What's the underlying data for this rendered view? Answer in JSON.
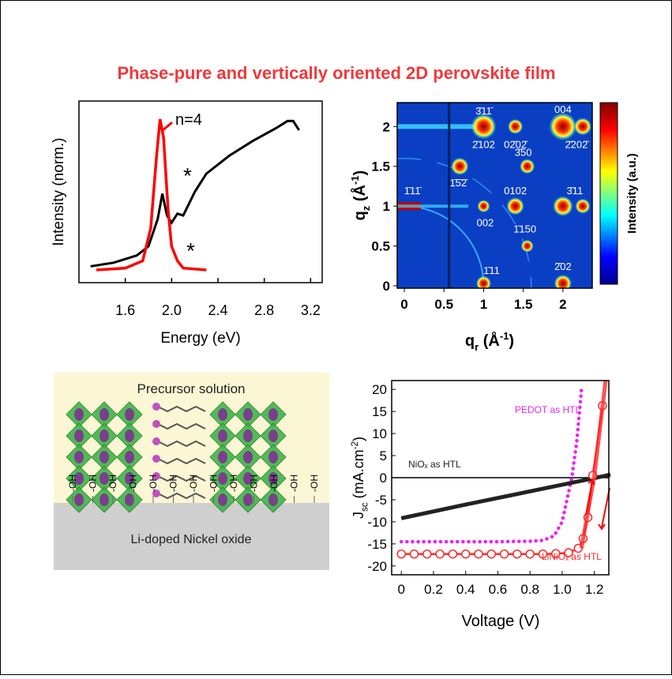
{
  "title": "Phase-pure and vertically oriented 2D perovskite film",
  "chart_data": [
    {
      "type": "line",
      "xlabel": "Energy (eV)",
      "ylabel": "Intensity (norm.)",
      "xlim": [
        1.2,
        3.3
      ],
      "ylim": [
        0,
        1
      ],
      "xticks": [
        1.6,
        {
          "value": 2,
          "label": "2.0"
        },
        2.4,
        2.8,
        3.2
      ],
      "annotations": [
        "n=4",
        "*",
        "*"
      ],
      "series": [
        {
          "color": "#000000",
          "x": [
            1.3,
            1.5,
            1.7,
            1.8,
            1.88,
            1.92,
            1.96,
            2.0,
            2.05,
            2.1,
            2.2,
            2.3,
            2.5,
            2.7,
            2.9,
            3.0,
            3.05,
            3.1
          ],
          "values": [
            0.09,
            0.11,
            0.15,
            0.2,
            0.35,
            0.49,
            0.37,
            0.33,
            0.38,
            0.37,
            0.5,
            0.6,
            0.7,
            0.78,
            0.85,
            0.89,
            0.89,
            0.84
          ]
        },
        {
          "color": "#ff0000",
          "x": [
            1.35,
            1.6,
            1.75,
            1.82,
            1.87,
            1.9,
            1.93,
            1.97,
            2.0,
            2.05,
            2.1,
            2.3
          ],
          "values": [
            0.07,
            0.08,
            0.12,
            0.3,
            0.7,
            0.9,
            0.8,
            0.4,
            0.2,
            0.12,
            0.08,
            0.07
          ]
        }
      ]
    },
    {
      "type": "heatmap",
      "xlabel": [
        {
          "t": "q"
        },
        {
          "t": "r",
          "s": "sub"
        },
        {
          "t": " (Å"
        },
        {
          "t": "-1",
          "s": "sup"
        },
        {
          "t": ")"
        }
      ],
      "ylabel": [
        {
          "t": "q"
        },
        {
          "t": "z",
          "s": "sub"
        },
        {
          "t": " (Å"
        },
        {
          "t": "-1",
          "s": "sup"
        },
        {
          "t": ")"
        }
      ],
      "colorbar_label": "Intensity (a.u.)",
      "xlim": [
        -0.09,
        2.37
      ],
      "ylim": [
        -0.03,
        2.3
      ],
      "xticks": [
        0,
        0.5,
        1,
        1.5,
        2
      ],
      "yticks": [
        0,
        0.5,
        1,
        1.5,
        2
      ],
      "peak_labels": [
        "3̄11̄",
        "2̄102",
        "02̄02̄",
        "004",
        "2̄202̄",
        "1̄5̄2̄",
        "3̄50",
        "1̄11̄",
        "0102",
        "3̄11",
        "002",
        "1̄150",
        "1̄11",
        "2̄02"
      ]
    },
    {
      "type": "line",
      "xlabel": "Voltage (V)",
      "ylabel": [
        {
          "t": "J"
        },
        {
          "t": "sc",
          "s": "sub"
        },
        {
          "t": " (mA.cm"
        },
        {
          "t": "-2",
          "s": "sup"
        },
        {
          "t": ")"
        }
      ],
      "xlim": [
        -0.06,
        1.29
      ],
      "ylim": [
        -22,
        22
      ],
      "xticks": [
        0,
        0.2,
        0.4,
        0.6,
        0.8,
        {
          "value": 1,
          "label": "1.0"
        },
        1.2
      ],
      "yticks": [
        -20,
        -15,
        -10,
        -5,
        0,
        5,
        10,
        15,
        20
      ],
      "series": [
        {
          "name": "PEDOT as HTL",
          "color": "#ee22ee",
          "dash": "dotted",
          "x": [
            0,
            0.2,
            0.4,
            0.6,
            0.8,
            0.88,
            0.95,
            1.0,
            1.03,
            1.06,
            1.09,
            1.12
          ],
          "values": [
            -14.5,
            -14.5,
            -14.5,
            -14.5,
            -14.4,
            -14.2,
            -13.2,
            -10,
            -5,
            0,
            8,
            20
          ]
        },
        {
          "name": "NiOₓ as HTL",
          "color": "#222222",
          "x": [
            0,
            0.4,
            0.8,
            1.2,
            1.3
          ],
          "values": [
            -9.2,
            -6.1,
            -3.1,
            -0.1,
            0.7
          ]
        },
        {
          "name": "LiNiOₓ as HTL",
          "color": "#ff2a2a",
          "marker": "circle",
          "x": [
            0,
            0.08,
            0.16,
            0.24,
            0.32,
            0.4,
            0.48,
            0.56,
            0.64,
            0.72,
            0.8,
            0.88,
            0.96,
            1.04,
            1.1,
            1.13,
            1.16,
            1.19,
            1.25
          ],
          "values": [
            -17.3,
            -17.3,
            -17.3,
            -17.3,
            -17.3,
            -17.3,
            -17.3,
            -17.3,
            -17.3,
            -17.3,
            -17.3,
            -17.3,
            -17.2,
            -17,
            -16,
            -13.8,
            -9,
            0.5,
            16.3
          ]
        }
      ]
    }
  ],
  "diagram": {
    "top_label": "Precursor solution",
    "bottom_label": "Li-doped Nickel oxide",
    "group_label": "-OH"
  }
}
